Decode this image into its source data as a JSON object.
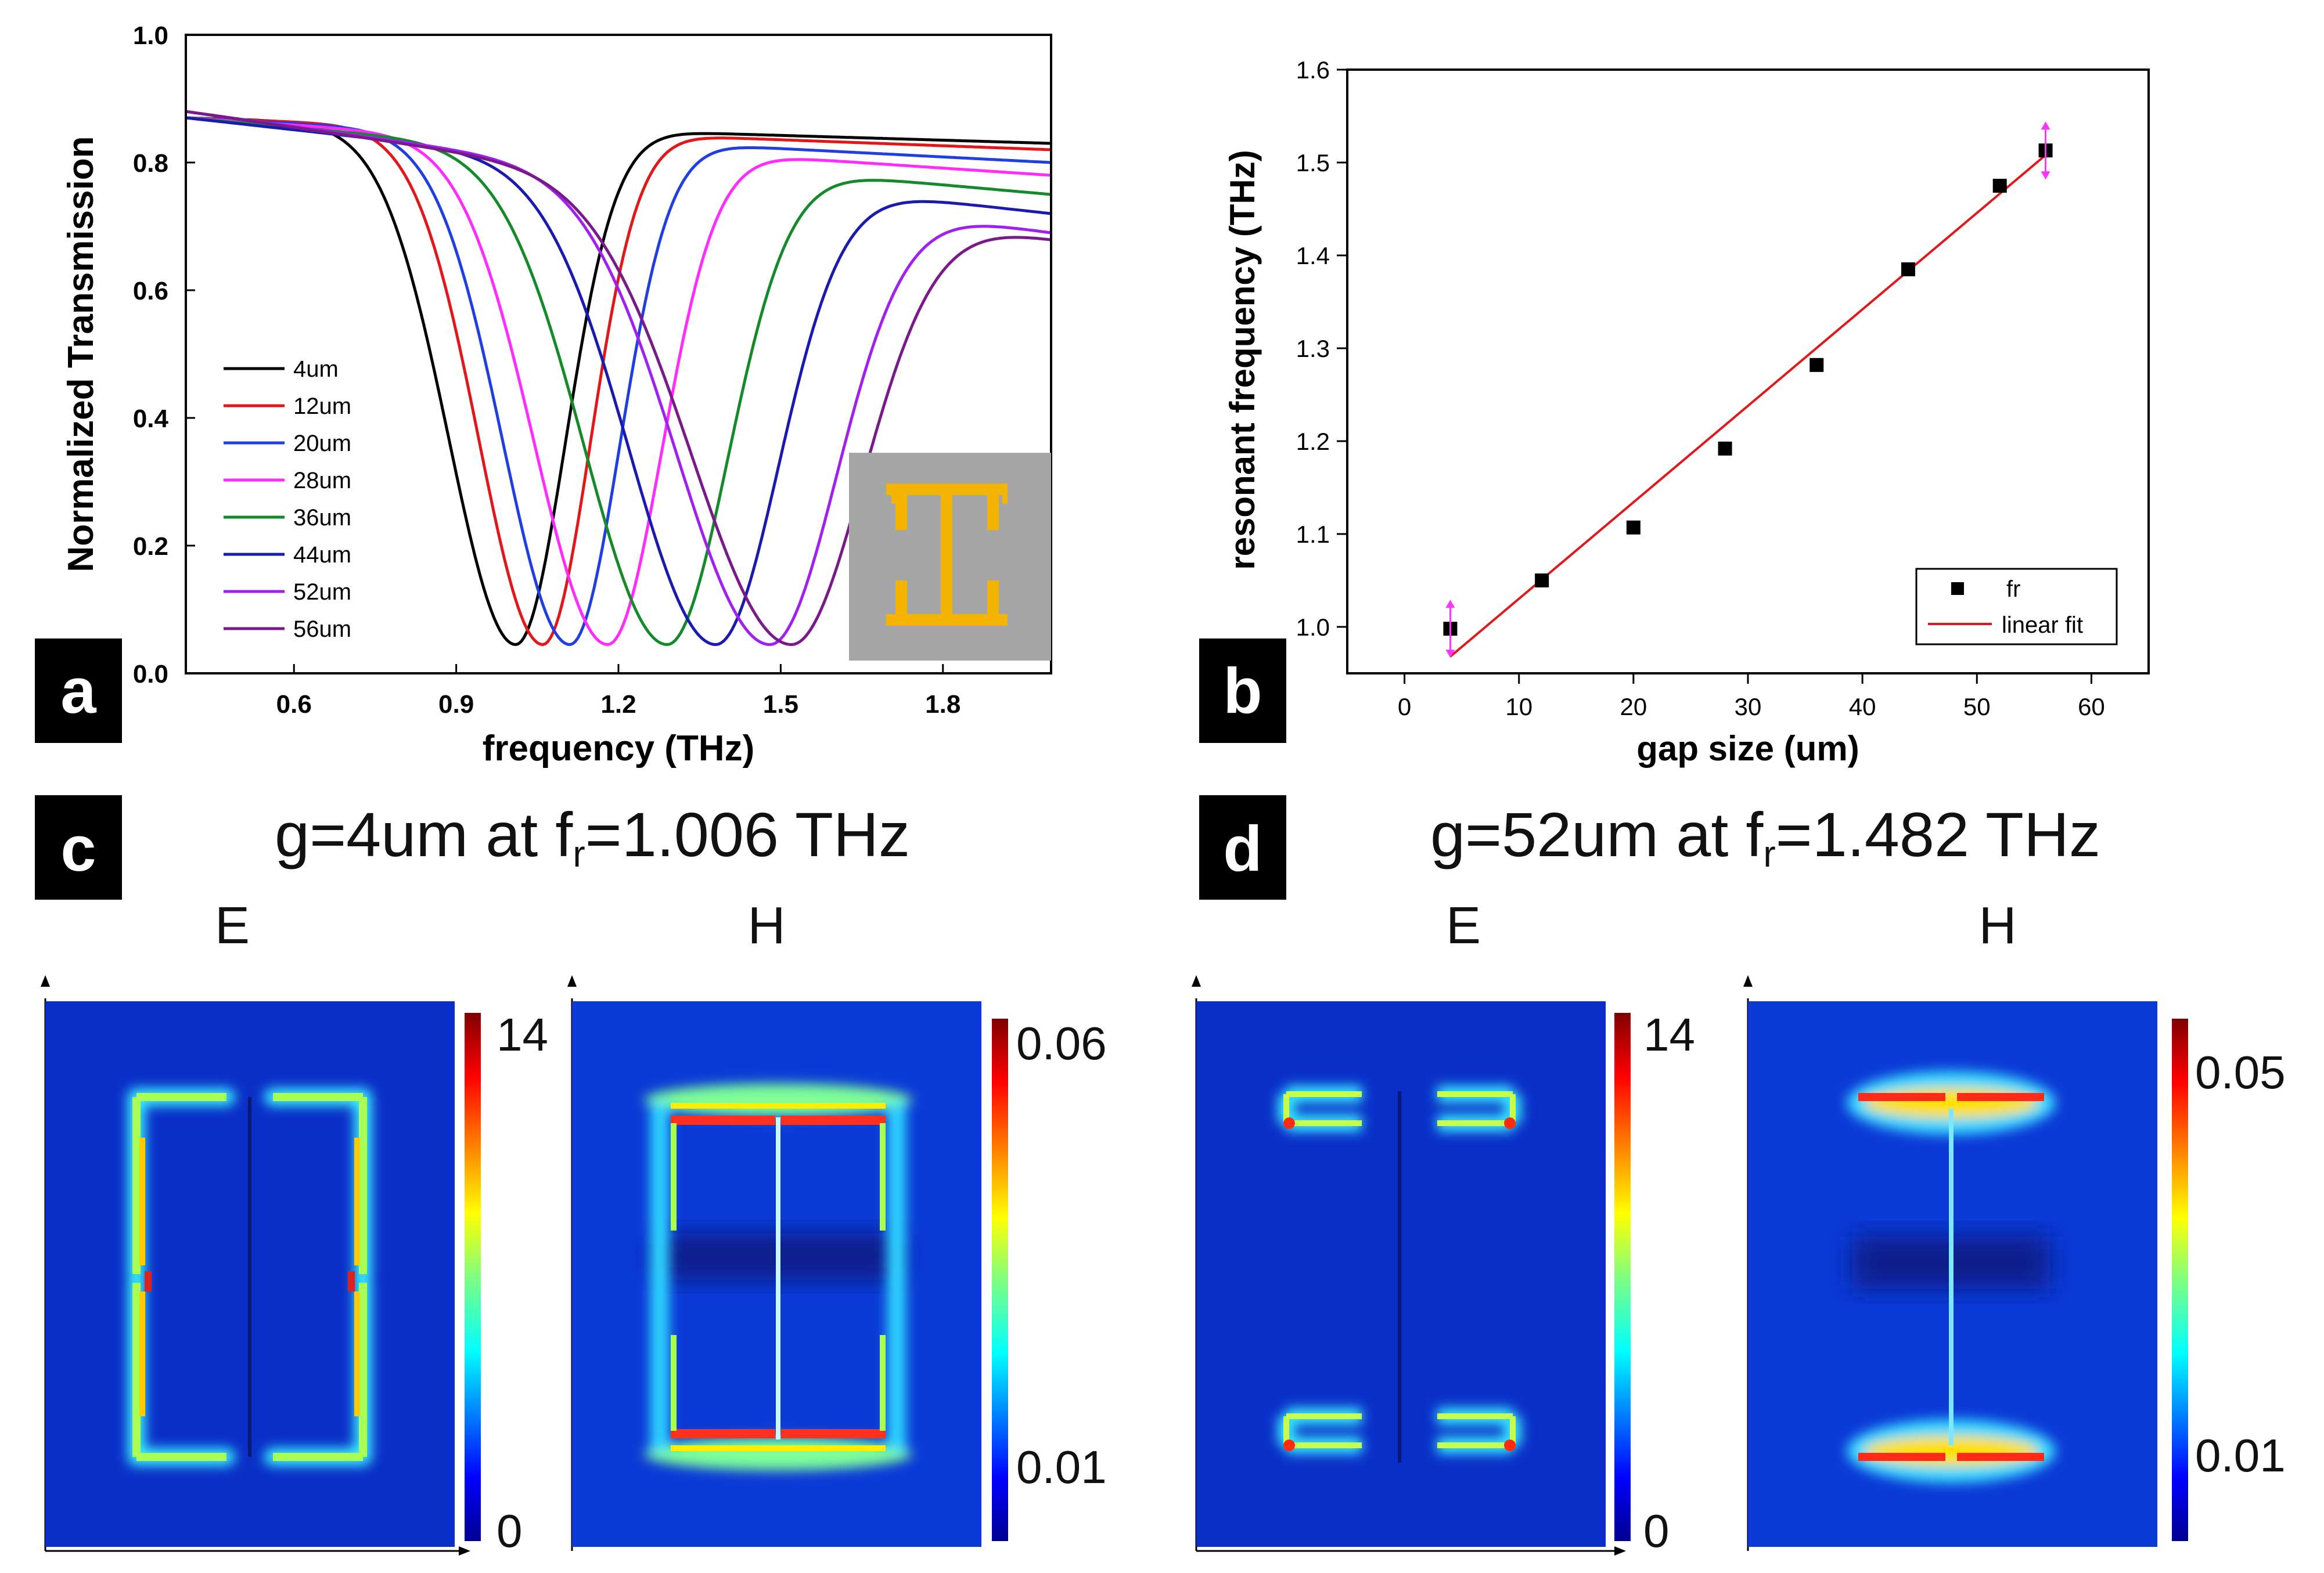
{
  "panels": {
    "a": {
      "tag": "a"
    },
    "b": {
      "tag": "b"
    },
    "c": {
      "tag": "c",
      "title": "g=4um at f",
      "title_sub": "r",
      "title_end": "=1.006 THz",
      "e_label": "E",
      "h_label": "H",
      "e_max": "14",
      "e_min": "0",
      "h_max": "0.06",
      "h_min": "0.01"
    },
    "d": {
      "tag": "d",
      "title": "g=52um at f",
      "title_sub": "r",
      "title_end": "=1.482 THz",
      "e_label": "E",
      "h_label": "H",
      "e_max": "14",
      "e_min": "0",
      "h_max": "0.05",
      "h_min": "0.01"
    }
  },
  "chart_data": [
    {
      "type": "line",
      "title": "",
      "xlabel": "frequency (THz)",
      "ylabel": "Normalized Transmission",
      "xlim": [
        0.4,
        2.0
      ],
      "ylim": [
        0.0,
        1.0
      ],
      "xticks": [
        0.6,
        0.9,
        1.2,
        1.5,
        1.8
      ],
      "xtick_labels": [
        "0.6",
        "0.9",
        "1.2",
        "1.5",
        "1.8"
      ],
      "yticks": [
        0.0,
        0.2,
        0.4,
        0.6,
        0.8,
        1.0
      ],
      "ytick_labels": [
        "0.0",
        "0.2",
        "0.4",
        "0.6",
        "0.8",
        "1.0"
      ],
      "legend_position": "left",
      "series": [
        {
          "name": "4um",
          "color": "#000000",
          "fmin": 1.01,
          "width": 0.22,
          "rise": 0.19,
          "start": 0.87,
          "end": 0.83
        },
        {
          "name": "12um",
          "color": "#e0181b",
          "fmin": 1.06,
          "width": 0.21,
          "rise": 0.17,
          "start": 0.87,
          "end": 0.82
        },
        {
          "name": "20um",
          "color": "#1f3fe0",
          "fmin": 1.11,
          "width": 0.22,
          "rise": 0.19,
          "start": 0.87,
          "end": 0.8
        },
        {
          "name": "28um",
          "color": "#ff2bff",
          "fmin": 1.18,
          "width": 0.24,
          "rise": 0.19,
          "start": 0.87,
          "end": 0.78
        },
        {
          "name": "36um",
          "color": "#158a2a",
          "fmin": 1.29,
          "width": 0.27,
          "rise": 0.2,
          "start": 0.87,
          "end": 0.75
        },
        {
          "name": "44um",
          "color": "#1a1ab0",
          "fmin": 1.38,
          "width": 0.28,
          "rise": 0.2,
          "start": 0.87,
          "end": 0.72
        },
        {
          "name": "52um",
          "color": "#a020f0",
          "fmin": 1.48,
          "width": 0.3,
          "rise": 0.19,
          "start": 0.88,
          "end": 0.69
        },
        {
          "name": "56um",
          "color": "#7a1a8a",
          "fmin": 1.52,
          "width": 0.32,
          "rise": 0.2,
          "start": 0.88,
          "end": 0.68
        }
      ]
    },
    {
      "type": "scatter",
      "title": "",
      "xlabel": "gap size (um)",
      "ylabel": "resonant frequency (THz)",
      "xlim": [
        -5,
        65
      ],
      "ylim": [
        0.95,
        1.6
      ],
      "xticks": [
        0,
        10,
        20,
        30,
        40,
        50,
        60
      ],
      "xtick_labels": [
        "0",
        "10",
        "20",
        "30",
        "40",
        "50",
        "60"
      ],
      "yticks": [
        1.0,
        1.1,
        1.2,
        1.3,
        1.4,
        1.5,
        1.6
      ],
      "ytick_labels": [
        "1.0",
        "1.1",
        "1.2",
        "1.3",
        "1.4",
        "1.5",
        "1.6"
      ],
      "legend_position": "bottom-right",
      "series": [
        {
          "name": "fr",
          "color": "#000000",
          "x": [
            4,
            12,
            20,
            28,
            36,
            44,
            52,
            56
          ],
          "y": [
            0.998,
            1.05,
            1.107,
            1.192,
            1.282,
            1.385,
            1.475,
            1.513
          ]
        },
        {
          "name": "linear fit",
          "color": "#e0181b",
          "x": [
            4,
            56
          ],
          "y": [
            0.968,
            1.508
          ]
        }
      ]
    }
  ]
}
